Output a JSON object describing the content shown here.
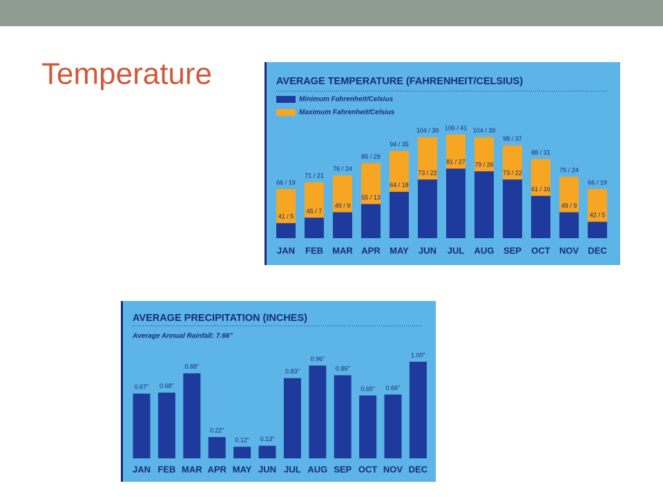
{
  "slide_title": "Temperature",
  "chart_data": [
    {
      "type": "bar",
      "title": "AVERAGE TEMPERATURE (FAHRENHEIT/CELSIUS)",
      "categories": [
        "JAN",
        "FEB",
        "MAR",
        "APR",
        "MAY",
        "JUN",
        "JUL",
        "AUG",
        "SEP",
        "OCT",
        "NOV",
        "DEC"
      ],
      "series": [
        {
          "name": "Maximum Fahrenheit/Celsius",
          "color": "#f6a623",
          "values": [
            66,
            71,
            76,
            85,
            94,
            104,
            106,
            104,
            98,
            88,
            75,
            66
          ],
          "value_labels": [
            "66 / 19",
            "71 / 21",
            "76 / 24",
            "85 / 29",
            "94 / 35",
            "104 / 39",
            "106 / 41",
            "104 / 39",
            "98 / 37",
            "88 / 31",
            "75 / 24",
            "66 / 19"
          ]
        },
        {
          "name": "Minimum Fahrenheit/Celsius",
          "color": "#1e3a9c",
          "values": [
            41,
            45,
            49,
            55,
            64,
            73,
            81,
            79,
            73,
            61,
            49,
            42
          ],
          "value_labels": [
            "41 / 5",
            "45 / 7",
            "49 / 9",
            "55 / 13",
            "64 / 18",
            "73 / 22",
            "81 / 27",
            "79 / 26",
            "73 / 22",
            "61 / 16",
            "49 / 9",
            "42 / 5"
          ]
        }
      ],
      "ylim": [
        30,
        110
      ]
    },
    {
      "type": "bar",
      "title": "AVERAGE PRECIPITATION (INCHES)",
      "subtitle": "Average Annual Rainfall: 7.66\"",
      "categories": [
        "JAN",
        "FEB",
        "MAR",
        "APR",
        "MAY",
        "JUN",
        "JUL",
        "AUG",
        "SEP",
        "OCT",
        "NOV",
        "DEC"
      ],
      "color": "#1e3a9c",
      "values": [
        0.67,
        0.68,
        0.88,
        0.22,
        0.12,
        0.13,
        0.83,
        0.96,
        0.86,
        0.65,
        0.66,
        1.0
      ],
      "value_labels": [
        "0.67\"",
        "0.68\"",
        "0.88\"",
        "0.22\"",
        "0.12\"",
        "0.13\"",
        "0.83\"",
        "0.96\"",
        "0.86\"",
        "0.65\"",
        "0.66\"",
        "1.00\""
      ],
      "ylim": [
        0,
        1.1
      ]
    }
  ]
}
